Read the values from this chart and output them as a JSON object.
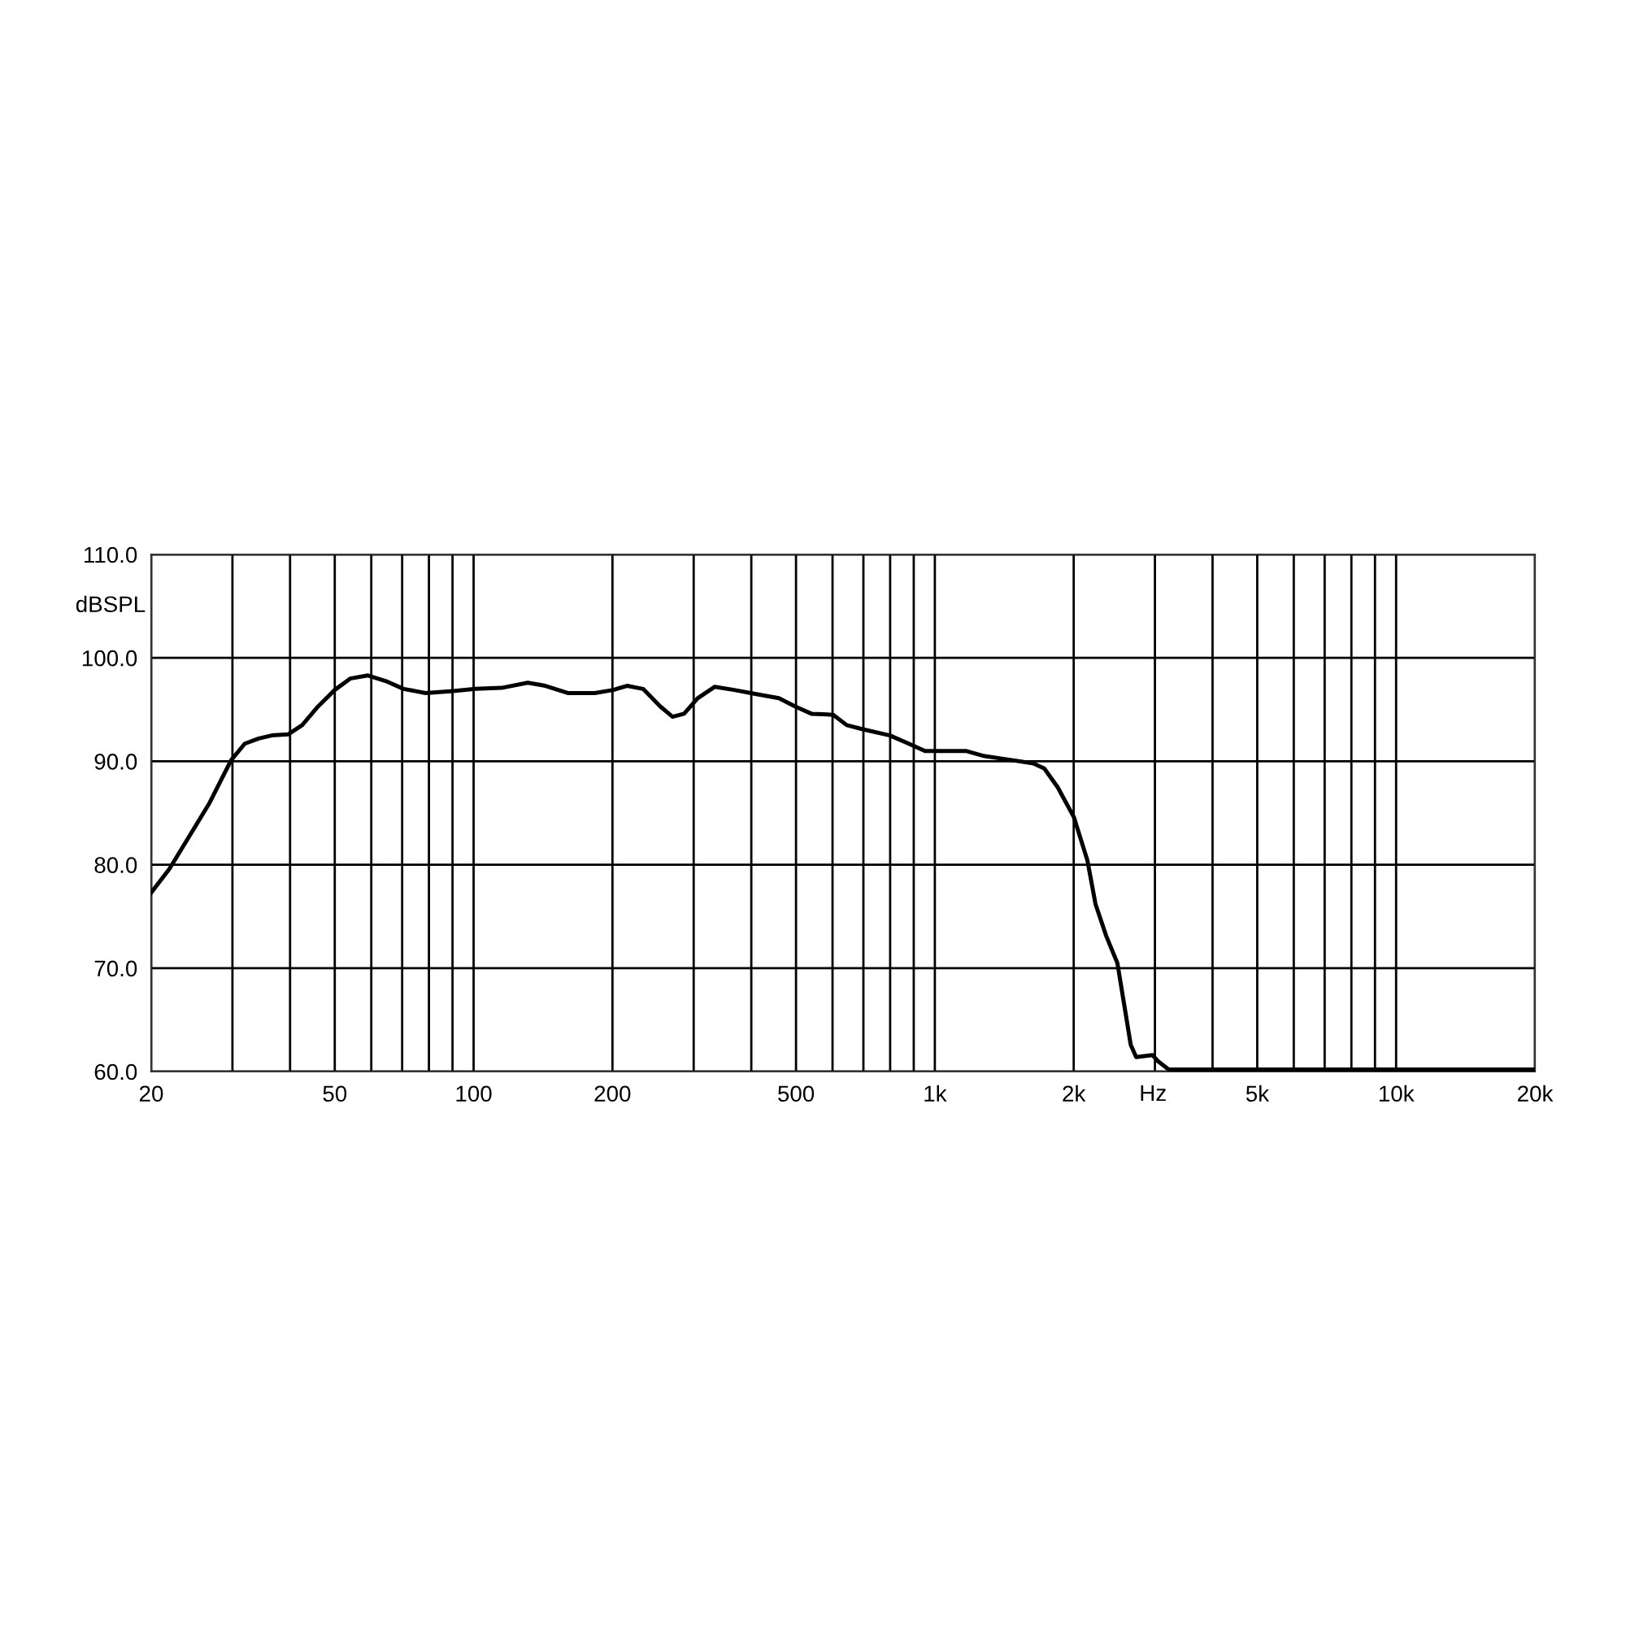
{
  "chart_data": {
    "type": "line",
    "xlabel": "Hz",
    "ylabel": "dBSPL",
    "log": "x",
    "grid": true,
    "marker": "none",
    "line_style": "solid",
    "xlim": [
      20,
      20000
    ],
    "ylim": [
      60,
      110
    ],
    "xticks": [
      20,
      {
        "value": 30,
        "label": null
      },
      {
        "value": 40,
        "label": null
      },
      50,
      {
        "value": 60,
        "label": null
      },
      {
        "value": 70,
        "label": null
      },
      {
        "value": 80,
        "label": null
      },
      {
        "value": 90,
        "label": null
      },
      100,
      200,
      {
        "value": 300,
        "label": null
      },
      {
        "value": 400,
        "label": null
      },
      500,
      {
        "value": 600,
        "label": null
      },
      {
        "value": 700,
        "label": null
      },
      {
        "value": 800,
        "label": null
      },
      {
        "value": 900,
        "label": null
      },
      {
        "value": 1000,
        "label": "1k"
      },
      {
        "value": 2000,
        "label": "2k"
      },
      {
        "value": 3000,
        "label": null
      },
      {
        "value": 4000,
        "label": null
      },
      {
        "value": 5000,
        "label": "5k"
      },
      {
        "value": 6000,
        "label": null
      },
      {
        "value": 7000,
        "label": null
      },
      {
        "value": 8000,
        "label": null
      },
      {
        "value": 9000,
        "label": null
      },
      {
        "value": 10000,
        "label": "10k"
      },
      {
        "value": 20000,
        "label": "20k"
      }
    ],
    "yticks": [
      {
        "value": 60,
        "label": "60.0"
      },
      {
        "value": 70,
        "label": "70.0"
      },
      {
        "value": 80,
        "label": "80.0"
      },
      {
        "value": 90,
        "label": "90.0"
      },
      {
        "value": 100,
        "label": "100.0"
      },
      {
        "value": 110,
        "label": "110.0"
      }
    ],
    "series": [
      {
        "color": "#000000",
        "x": [
          20,
          21.9,
          24,
          26.7,
          29.8,
          31.9,
          34.2,
          36.5,
          39.6,
          42.5,
          46,
          50,
          54,
          59,
          65,
          70.5,
          78.7,
          90.3,
          101,
          115,
          131,
          143,
          160,
          183,
          201,
          215,
          233,
          254,
          270,
          286,
          306,
          333,
          367,
          410,
          459,
          498,
          540,
          602,
          644,
          698,
          799,
          878,
          952,
          1033,
          1167,
          1282,
          1428,
          1635,
          1727,
          1846,
          2002,
          2142,
          2230,
          2353,
          2487,
          2588,
          2658,
          2732,
          2963,
          3046,
          3213,
          19620,
          20000
        ],
        "values": [
          77.3,
          79.6,
          82.5,
          85.9,
          90.1,
          91.7,
          92.2,
          92.5,
          92.6,
          93.5,
          95.3,
          96.9,
          98,
          98.3,
          97.7,
          97,
          96.6,
          96.8,
          97,
          97.1,
          97.6,
          97.3,
          96.6,
          96.6,
          96.9,
          97.3,
          97,
          95.3,
          94.3,
          94.6,
          96.1,
          97.2,
          96.9,
          96.5,
          96.1,
          95.3,
          94.6,
          94.5,
          93.5,
          93.1,
          92.5,
          91.7,
          91,
          91,
          91,
          90.5,
          90.2,
          89.8,
          89.3,
          87.5,
          84.6,
          80.4,
          76.2,
          73.1,
          70.5,
          65.8,
          62.6,
          61.4,
          61.6,
          61,
          60.2,
          60.2,
          60.2
        ]
      }
    ]
  }
}
